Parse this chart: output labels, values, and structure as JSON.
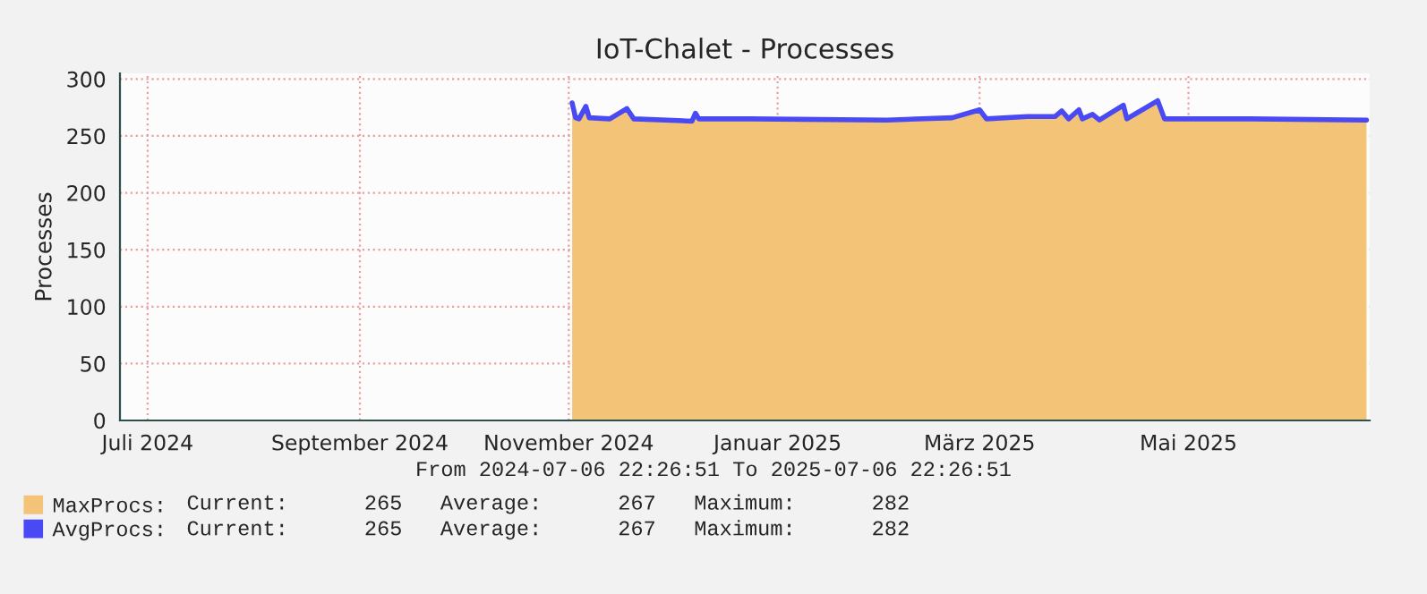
{
  "chart_data": {
    "type": "area",
    "title": "IoT-Chalet - Processes",
    "ylabel": "Processes",
    "x": [
      "2024-11-16",
      "2024-11-17",
      "2024-11-18",
      "2024-11-20",
      "2024-11-21",
      "2024-11-27",
      "2024-12-02",
      "2024-12-04",
      "2024-12-21",
      "2024-12-22",
      "2024-12-23",
      "2025-01-07",
      "2025-02-16",
      "2025-03-07",
      "2025-03-15",
      "2025-03-17",
      "2025-03-29",
      "2025-04-06",
      "2025-04-08",
      "2025-04-10",
      "2025-04-13",
      "2025-04-14",
      "2025-04-17",
      "2025-04-19",
      "2025-04-26",
      "2025-04-27",
      "2025-05-06",
      "2025-05-08",
      "2025-06-02",
      "2025-07-06"
    ],
    "series": [
      {
        "name": "MaxProcs:",
        "color": "#f3c477",
        "values": [
          279,
          266,
          265,
          276,
          266,
          265,
          274,
          265,
          263,
          270,
          265,
          265,
          264,
          266,
          273,
          265,
          267,
          267,
          272,
          265,
          273,
          265,
          269,
          264,
          277,
          265,
          281,
          265,
          265,
          264
        ]
      },
      {
        "name": "AvgProcs:",
        "type": "line",
        "color": "#4a4af5",
        "values": [
          279,
          266,
          265,
          276,
          266,
          265,
          274,
          265,
          263,
          270,
          265,
          265,
          264,
          266,
          273,
          265,
          267,
          267,
          272,
          265,
          273,
          265,
          269,
          264,
          277,
          265,
          281,
          265,
          265,
          264
        ]
      }
    ],
    "xlim": [
      "2024-07-06T22:26",
      "2025-07-06T22:26"
    ],
    "xticks": [
      {
        "value": "2024-07-15",
        "label": "Juli 2024"
      },
      {
        "value": "2024-09-15",
        "label": "September 2024"
      },
      {
        "value": "2024-11-15",
        "label": "November 2024"
      },
      {
        "value": "2025-01-15",
        "label": "Januar 2025"
      },
      {
        "value": "2025-03-15",
        "label": "März 2025"
      },
      {
        "value": "2025-05-15",
        "label": "Mai 2025"
      }
    ],
    "ylim": [
      0,
      305
    ],
    "yticks": [
      0,
      50,
      100,
      150,
      200,
      250,
      300
    ],
    "grid": true,
    "legend": "bottom left",
    "annotations": [
      "From 2024-07-06 22:26:51 To 2025-07-06 22:26:51",
      "Current:      265   Average:      267   Maximum:      282",
      "Current:      265   Average:      267   Maximum:      282"
    ]
  }
}
